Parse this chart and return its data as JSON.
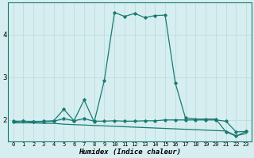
{
  "xlabel": "Humidex (Indice chaleur)",
  "x_ticks": [
    0,
    1,
    2,
    3,
    4,
    5,
    6,
    7,
    8,
    9,
    10,
    11,
    12,
    13,
    14,
    15,
    16,
    17,
    18,
    19,
    20,
    21,
    22,
    23
  ],
  "y_ticks": [
    2,
    3,
    4
  ],
  "xlim": [
    -0.5,
    23.5
  ],
  "ylim": [
    1.5,
    4.75
  ],
  "background_color": "#d6eef0",
  "grid_color": "#b8d8dc",
  "line_color": "#1a7a72",
  "series_peak_x": [
    0,
    1,
    2,
    3,
    4,
    5,
    6,
    7,
    8,
    9,
    10,
    11,
    12,
    13,
    14,
    15,
    16,
    17,
    18,
    19,
    20,
    21,
    22,
    23
  ],
  "series_peak_y": [
    1.95,
    1.97,
    1.95,
    1.97,
    1.98,
    2.25,
    1.98,
    2.47,
    1.95,
    2.93,
    4.52,
    4.43,
    4.5,
    4.4,
    4.45,
    4.46,
    2.87,
    2.05,
    2.02,
    2.02,
    2.02,
    1.72,
    1.62,
    1.73
  ],
  "series_flat_x": [
    0,
    1,
    2,
    3,
    4,
    5,
    6,
    7,
    8,
    9,
    10,
    11,
    12,
    13,
    14,
    15,
    16,
    17,
    18,
    19,
    20,
    21,
    22,
    23
  ],
  "series_flat_y": [
    1.97,
    1.97,
    1.96,
    1.96,
    1.97,
    2.03,
    1.98,
    2.03,
    1.97,
    1.97,
    1.98,
    1.97,
    1.97,
    1.98,
    1.98,
    2.0,
    2.0,
    2.0,
    2.0,
    2.0,
    2.0,
    1.97,
    1.72,
    1.73
  ],
  "series_low_x": [
    0,
    1,
    2,
    3,
    4,
    5,
    6,
    7,
    8,
    9,
    10,
    11,
    12,
    13,
    14,
    15,
    16,
    17,
    18,
    19,
    20,
    21,
    22,
    23
  ],
  "series_low_y": [
    1.93,
    1.93,
    1.93,
    1.92,
    1.92,
    1.9,
    1.89,
    1.88,
    1.87,
    1.86,
    1.85,
    1.84,
    1.83,
    1.82,
    1.81,
    1.8,
    1.79,
    1.78,
    1.77,
    1.76,
    1.75,
    1.74,
    1.63,
    1.68
  ]
}
